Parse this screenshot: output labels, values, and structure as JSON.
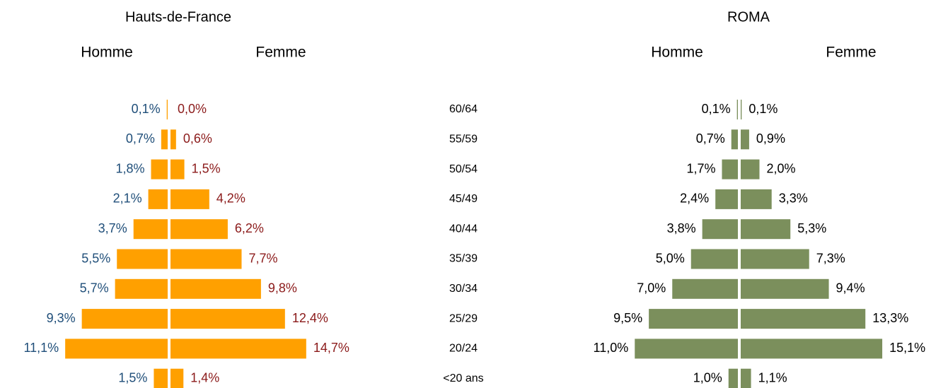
{
  "chart_data": {
    "type": "pyramid",
    "categories": [
      "60/64",
      "55/59",
      "50/54",
      "45/49",
      "40/44",
      "35/39",
      "30/34",
      "25/29",
      "20/24",
      "<20 ans"
    ],
    "panels": [
      {
        "title": "Hauts-de-France",
        "series": [
          {
            "name": "Homme",
            "color": "#ffa000",
            "label_color": "#1f4e79",
            "values": [
              0.1,
              0.7,
              1.8,
              2.1,
              3.7,
              5.5,
              5.7,
              9.3,
              11.1,
              1.5
            ],
            "value_labels": [
              "0,1%",
              "0,7%",
              "1,8%",
              "2,1%",
              "3,7%",
              "5,5%",
              "5,7%",
              "9,3%",
              "11,1%",
              "1,5%"
            ]
          },
          {
            "name": "Femme",
            "color": "#ffa000",
            "label_color": "#8b1a1a",
            "values": [
              0.0,
              0.6,
              1.5,
              4.2,
              6.2,
              7.7,
              9.8,
              12.4,
              14.7,
              1.4
            ],
            "value_labels": [
              "0,0%",
              "0,6%",
              "1,5%",
              "4,2%",
              "6,2%",
              "7,7%",
              "9,8%",
              "12,4%",
              "14,7%",
              "1,4%"
            ]
          }
        ]
      },
      {
        "title": "ROMA",
        "series": [
          {
            "name": "Homme",
            "color": "#7b8f5c",
            "label_color": "#000000",
            "values": [
              0.1,
              0.7,
              1.7,
              2.4,
              3.8,
              5.0,
              7.0,
              9.5,
              11.0,
              1.0
            ],
            "value_labels": [
              "0,1%",
              "0,7%",
              "1,7%",
              "2,4%",
              "3,8%",
              "5,0%",
              "7,0%",
              "9,5%",
              "11,0%",
              "1,0%"
            ]
          },
          {
            "name": "Femme",
            "color": "#7b8f5c",
            "label_color": "#000000",
            "values": [
              0.1,
              0.9,
              2.0,
              3.3,
              5.3,
              7.3,
              9.4,
              13.3,
              15.1,
              1.1
            ],
            "value_labels": [
              "0,1%",
              "0,9%",
              "2,0%",
              "3,3%",
              "5,3%",
              "7,3%",
              "9,4%",
              "13,3%",
              "15,1%",
              "1,1%"
            ]
          }
        ]
      }
    ]
  }
}
